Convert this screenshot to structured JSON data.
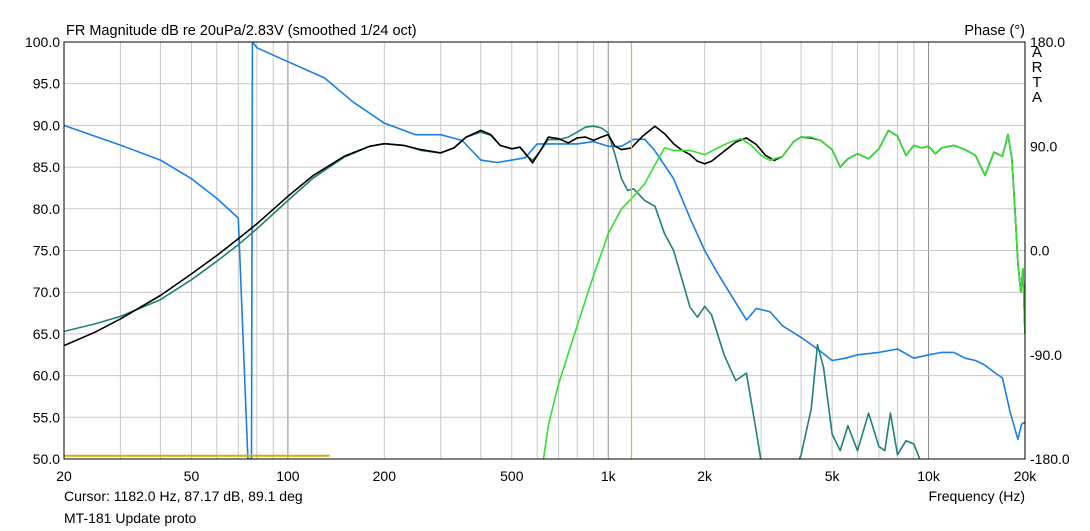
{
  "chart_data": {
    "type": "line",
    "title": "FR Magnitude dB re 20uPa/2.83V (smoothed 1/24 oct)",
    "right_axis_title": "Phase (°)",
    "brand": "ARTA",
    "xlabel": "Frequency (Hz)",
    "x_scale": "log",
    "xlim": [
      20,
      20000
    ],
    "ylim": [
      50,
      100
    ],
    "phase_lim": [
      -180,
      180
    ],
    "x_ticks": [
      {
        "v": 20,
        "label": "20"
      },
      {
        "v": 50,
        "label": "50"
      },
      {
        "v": 100,
        "label": "100"
      },
      {
        "v": 200,
        "label": "200"
      },
      {
        "v": 500,
        "label": "500"
      },
      {
        "v": 1000,
        "label": "1k"
      },
      {
        "v": 2000,
        "label": "2k"
      },
      {
        "v": 5000,
        "label": "5k"
      },
      {
        "v": 10000,
        "label": "10k"
      },
      {
        "v": 20000,
        "label": "20k"
      }
    ],
    "y_ticks": [
      {
        "v": 100,
        "label": "100.0"
      },
      {
        "v": 95,
        "label": "95.0"
      },
      {
        "v": 90,
        "label": "90.0"
      },
      {
        "v": 85,
        "label": "85.0"
      },
      {
        "v": 80,
        "label": "80.0"
      },
      {
        "v": 75,
        "label": "75.0"
      },
      {
        "v": 70,
        "label": "70.0"
      },
      {
        "v": 65,
        "label": "65.0"
      },
      {
        "v": 60,
        "label": "60.0"
      },
      {
        "v": 55,
        "label": "55.0"
      },
      {
        "v": 50,
        "label": "50.0"
      }
    ],
    "phase_ticks": [
      {
        "v": 180,
        "label": "180.0"
      },
      {
        "v": 90,
        "label": "90.0"
      },
      {
        "v": 0,
        "label": "0.0"
      },
      {
        "v": -90,
        "label": "-90.0"
      },
      {
        "v": -180,
        "label": "-180.0"
      }
    ],
    "grid": true,
    "cursor": {
      "freq": 1182,
      "label": "Cursor: 1182.0 Hz, 87.17 dB, 89.1 deg",
      "color": "#d4c020"
    },
    "footer": "MT-181 Update proto",
    "series": [
      {
        "key": "sum",
        "color": "#000000",
        "points": [
          [
            20,
            63.6
          ],
          [
            25,
            65.2
          ],
          [
            30,
            66.8
          ],
          [
            40,
            69.6
          ],
          [
            50,
            72.2
          ],
          [
            60,
            74.4
          ],
          [
            70,
            76.4
          ],
          [
            80,
            78.2
          ],
          [
            100,
            81.5
          ],
          [
            120,
            84
          ],
          [
            150,
            86.3
          ],
          [
            180,
            87.5
          ],
          [
            200,
            87.8
          ],
          [
            230,
            87.6
          ],
          [
            260,
            87.1
          ],
          [
            300,
            86.7
          ],
          [
            330,
            87.3
          ],
          [
            360,
            88.6
          ],
          [
            400,
            89.4
          ],
          [
            430,
            88.9
          ],
          [
            460,
            87.6
          ],
          [
            500,
            87.2
          ],
          [
            530,
            87.4
          ],
          [
            560,
            86.3
          ],
          [
            580,
            85.5
          ],
          [
            610,
            86.8
          ],
          [
            650,
            88.6
          ],
          [
            700,
            88.4
          ],
          [
            750,
            87.9
          ],
          [
            800,
            88.5
          ],
          [
            850,
            88.6
          ],
          [
            900,
            88.2
          ],
          [
            950,
            88.6
          ],
          [
            1000,
            88.9
          ],
          [
            1050,
            87.5
          ],
          [
            1100,
            87.1
          ],
          [
            1180,
            87.3
          ],
          [
            1280,
            88.7
          ],
          [
            1400,
            89.9
          ],
          [
            1500,
            89
          ],
          [
            1600,
            87.8
          ],
          [
            1700,
            87
          ],
          [
            1800,
            86.5
          ],
          [
            1900,
            85.7
          ],
          [
            2000,
            85.4
          ],
          [
            2100,
            85.7
          ],
          [
            2300,
            86.9
          ],
          [
            2500,
            88
          ],
          [
            2700,
            88.5
          ],
          [
            2900,
            87.7
          ],
          [
            3100,
            86.4
          ],
          [
            3300,
            85.8
          ],
          [
            3500,
            86.3
          ],
          [
            3800,
            88.1
          ],
          [
            4000,
            88.6
          ],
          [
            4300,
            88.5
          ],
          [
            4600,
            88.2
          ],
          [
            5000,
            87.1
          ],
          [
            5300,
            85
          ],
          [
            5600,
            86
          ],
          [
            6000,
            86.6
          ],
          [
            6500,
            86
          ],
          [
            7000,
            87.2
          ],
          [
            7500,
            89.4
          ],
          [
            8000,
            88.7
          ],
          [
            8500,
            86.4
          ],
          [
            9000,
            87.6
          ],
          [
            9500,
            87.3
          ],
          [
            10000,
            87.5
          ],
          [
            10500,
            86.6
          ],
          [
            11000,
            87.3
          ],
          [
            12000,
            87.6
          ],
          [
            13000,
            87.1
          ],
          [
            14000,
            86.4
          ],
          [
            15000,
            84
          ],
          [
            16000,
            86.8
          ],
          [
            17000,
            86.3
          ],
          [
            17700,
            88.9
          ],
          [
            18200,
            86
          ],
          [
            18600,
            80
          ],
          [
            19000,
            73.5
          ],
          [
            19400,
            70
          ],
          [
            19700,
            72.8
          ],
          [
            20000,
            65
          ]
        ]
      },
      {
        "key": "woofer",
        "color": "#20807a",
        "points": [
          [
            20,
            65.3
          ],
          [
            25,
            66.2
          ],
          [
            30,
            67.1
          ],
          [
            40,
            69.1
          ],
          [
            50,
            71.5
          ],
          [
            60,
            73.7
          ],
          [
            70,
            75.7
          ],
          [
            80,
            77.6
          ],
          [
            100,
            81
          ],
          [
            120,
            83.7
          ],
          [
            150,
            86.2
          ],
          [
            180,
            87.5
          ],
          [
            200,
            87.8
          ],
          [
            230,
            87.6
          ],
          [
            260,
            87
          ],
          [
            300,
            86.7
          ],
          [
            330,
            87.3
          ],
          [
            360,
            88.6
          ],
          [
            400,
            89.2
          ],
          [
            430,
            88.8
          ],
          [
            460,
            87.6
          ],
          [
            500,
            87.2
          ],
          [
            530,
            87.4
          ],
          [
            560,
            86.3
          ],
          [
            580,
            85.8
          ],
          [
            610,
            86.8
          ],
          [
            650,
            88.3
          ],
          [
            700,
            88.3
          ],
          [
            750,
            88.6
          ],
          [
            800,
            89.2
          ],
          [
            850,
            89.8
          ],
          [
            900,
            89.9
          ],
          [
            950,
            89.7
          ],
          [
            1000,
            89.1
          ],
          [
            1050,
            86.5
          ],
          [
            1100,
            83.6
          ],
          [
            1150,
            82.2
          ],
          [
            1200,
            82.4
          ],
          [
            1300,
            81
          ],
          [
            1400,
            80.3
          ],
          [
            1500,
            77
          ],
          [
            1600,
            75
          ],
          [
            1700,
            71.5
          ],
          [
            1800,
            68.2
          ],
          [
            1900,
            67
          ],
          [
            2000,
            68.3
          ],
          [
            2100,
            67.3
          ],
          [
            2300,
            62.5
          ],
          [
            2500,
            59.4
          ],
          [
            2700,
            60.3
          ],
          [
            2900,
            53.2
          ],
          [
            3050,
            48
          ],
          [
            3500,
            45
          ],
          [
            4000,
            50.5
          ],
          [
            4300,
            56
          ],
          [
            4500,
            63.7
          ],
          [
            4700,
            61
          ],
          [
            5000,
            53
          ],
          [
            5300,
            51
          ],
          [
            5600,
            54
          ],
          [
            6000,
            51
          ],
          [
            6500,
            55.5
          ],
          [
            7000,
            51.5
          ],
          [
            7300,
            51
          ],
          [
            7600,
            55.5
          ],
          [
            8000,
            50.5
          ],
          [
            8500,
            52.2
          ],
          [
            9000,
            51.8
          ],
          [
            9500,
            49.5
          ],
          [
            10000,
            48.5
          ]
        ]
      },
      {
        "key": "tweeter",
        "color": "#33e033",
        "points": [
          [
            617,
            48
          ],
          [
            650,
            54
          ],
          [
            700,
            59
          ],
          [
            800,
            66
          ],
          [
            900,
            72
          ],
          [
            1000,
            77
          ],
          [
            1100,
            80
          ],
          [
            1200,
            81.5
          ],
          [
            1300,
            83
          ],
          [
            1400,
            85.3
          ],
          [
            1500,
            87.3
          ],
          [
            1600,
            87
          ],
          [
            1800,
            87
          ],
          [
            2000,
            86.5
          ],
          [
            2200,
            87.3
          ],
          [
            2400,
            88
          ],
          [
            2600,
            88.4
          ],
          [
            2800,
            87.6
          ],
          [
            3000,
            86.4
          ],
          [
            3200,
            85.8
          ],
          [
            3500,
            86.3
          ],
          [
            3800,
            88.1
          ],
          [
            4000,
            88.6
          ],
          [
            4300,
            88.6
          ],
          [
            4600,
            88.2
          ],
          [
            5000,
            87.1
          ],
          [
            5300,
            85
          ],
          [
            5600,
            86
          ],
          [
            6000,
            86.6
          ],
          [
            6500,
            86
          ],
          [
            7000,
            87.2
          ],
          [
            7500,
            89.4
          ],
          [
            8000,
            88.7
          ],
          [
            8500,
            86.4
          ],
          [
            9000,
            87.6
          ],
          [
            9500,
            87.3
          ],
          [
            10000,
            87.5
          ],
          [
            10500,
            86.6
          ],
          [
            11000,
            87.3
          ],
          [
            12000,
            87.6
          ],
          [
            13000,
            87.1
          ],
          [
            14000,
            86.4
          ],
          [
            15000,
            84
          ],
          [
            16000,
            86.8
          ],
          [
            17000,
            86.3
          ],
          [
            17700,
            88.9
          ],
          [
            18200,
            86
          ],
          [
            18600,
            80
          ],
          [
            19000,
            73.5
          ],
          [
            19400,
            70
          ],
          [
            19700,
            72.8
          ],
          [
            20000,
            65
          ]
        ]
      },
      {
        "key": "phase",
        "color": "#1a7fe0",
        "axis": "phase",
        "points": [
          [
            20,
            108
          ],
          [
            30,
            91
          ],
          [
            40,
            78
          ],
          [
            50,
            62
          ],
          [
            60,
            45
          ],
          [
            70,
            28
          ],
          [
            75,
            -180
          ],
          [
            77,
            -180
          ],
          [
            77.5,
            180
          ],
          [
            80,
            175
          ],
          [
            100,
            163
          ],
          [
            130,
            149
          ],
          [
            160,
            128
          ],
          [
            200,
            110
          ],
          [
            250,
            100
          ],
          [
            300,
            100
          ],
          [
            350,
            95
          ],
          [
            400,
            78
          ],
          [
            450,
            76
          ],
          [
            500,
            78
          ],
          [
            550,
            80
          ],
          [
            600,
            92
          ],
          [
            700,
            92
          ],
          [
            800,
            92
          ],
          [
            900,
            94
          ],
          [
            1000,
            90
          ],
          [
            1100,
            90
          ],
          [
            1200,
            96
          ],
          [
            1300,
            96
          ],
          [
            1400,
            86
          ],
          [
            1600,
            62
          ],
          [
            1800,
            28
          ],
          [
            2000,
            0
          ],
          [
            2200,
            -20
          ],
          [
            2500,
            -45
          ],
          [
            2700,
            -60
          ],
          [
            2900,
            -50
          ],
          [
            3200,
            -53
          ],
          [
            3500,
            -65
          ],
          [
            4000,
            -75
          ],
          [
            4500,
            -85
          ],
          [
            5000,
            -95
          ],
          [
            5500,
            -93
          ],
          [
            6000,
            -90
          ],
          [
            7000,
            -88
          ],
          [
            8000,
            -85
          ],
          [
            9000,
            -93
          ],
          [
            10000,
            -90
          ],
          [
            11000,
            -88
          ],
          [
            12000,
            -88
          ],
          [
            13000,
            -93
          ],
          [
            14000,
            -95
          ],
          [
            15000,
            -99
          ],
          [
            16000,
            -105
          ],
          [
            17000,
            -110
          ],
          [
            18000,
            -140
          ],
          [
            19000,
            -163
          ],
          [
            19500,
            -150
          ],
          [
            20000,
            -148
          ]
        ]
      },
      {
        "key": "cursor_level",
        "color": "#c9b400",
        "points": [
          [
            20,
            50.4
          ],
          [
            135,
            50.4
          ]
        ]
      }
    ]
  }
}
